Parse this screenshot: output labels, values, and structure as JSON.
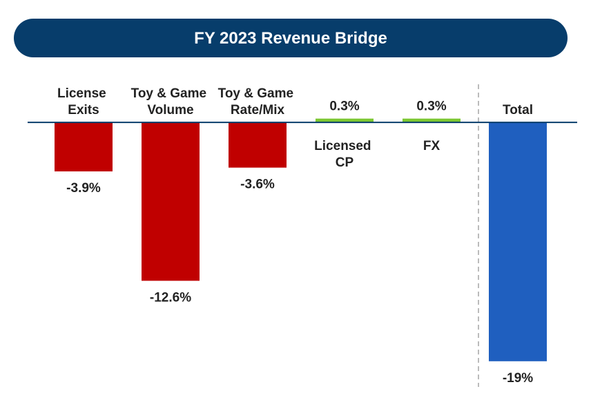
{
  "chart_data": {
    "type": "bar",
    "title": "FY 2023 Revenue Bridge",
    "categories": [
      "License Exits",
      "Toy & Game Volume",
      "Toy & Game Rate/Mix",
      "Licensed CP",
      "FX",
      "Total"
    ],
    "values": [
      -3.9,
      -12.6,
      -3.6,
      0.3,
      0.3,
      -19
    ],
    "value_labels": [
      "-3.9%",
      "-12.6%",
      "-3.6%",
      "0.3%",
      "0.3%",
      "-19%"
    ],
    "colors": [
      "#c00000",
      "#c00000",
      "#c00000",
      "#7dc832",
      "#7dc832",
      "#1f5fbf"
    ],
    "ylim": [
      -20,
      0.5
    ]
  }
}
